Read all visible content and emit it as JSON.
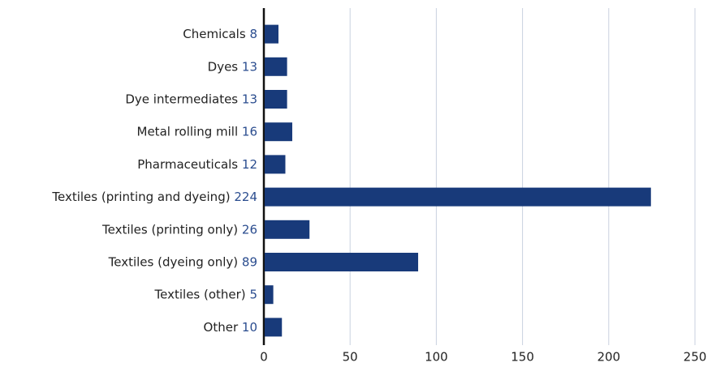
{
  "chart_data": {
    "type": "bar",
    "orientation": "horizontal",
    "categories": [
      "Chemicals",
      "Dyes",
      "Dye intermediates",
      "Metal rolling mill",
      "Pharmaceuticals",
      "Textiles (printing and dyeing)",
      "Textiles (printing only)",
      "Textiles (dyeing only)",
      "Textiles (other)",
      "Other"
    ],
    "values": [
      8,
      13,
      13,
      16,
      12,
      224,
      26,
      89,
      5,
      10
    ],
    "color": "#183a7a",
    "value_label_color": "#2b4d8f",
    "xlim": [
      0,
      250
    ],
    "xticks": [
      0,
      50,
      100,
      150,
      200,
      250
    ],
    "grid": true
  }
}
